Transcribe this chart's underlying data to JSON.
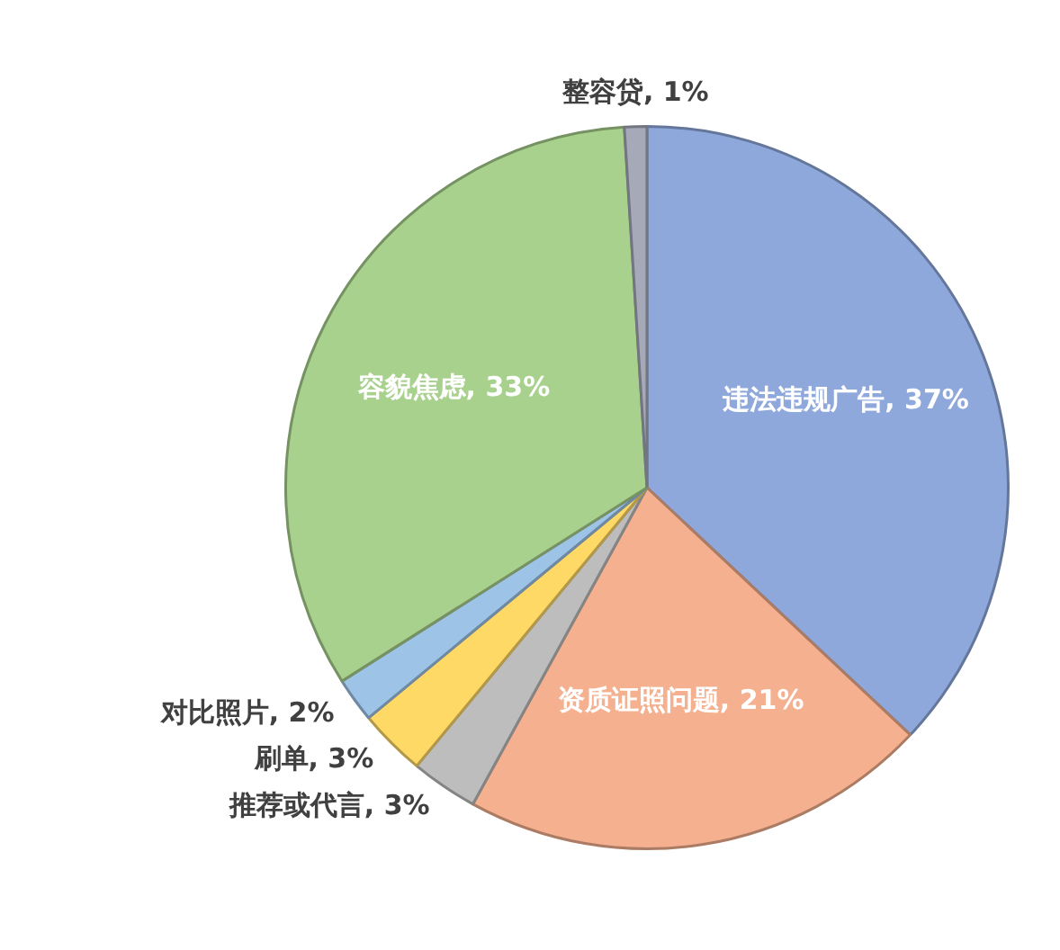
{
  "chart_data": {
    "type": "pie",
    "categories": [
      "违法违规广告",
      "资质证照问题",
      "推荐或代言",
      "刷单",
      "对比照片",
      "容貌焦虑",
      "整容贷"
    ],
    "values": [
      37,
      21,
      3,
      3,
      2,
      33,
      1
    ],
    "value_labels": [
      "37%",
      "21%",
      "3%",
      "3%",
      "2%",
      "33%",
      "1%"
    ],
    "colors": [
      "#8fa8dc",
      "#f4b08f",
      "#bdbdbd",
      "#ffd966",
      "#9dc3e6",
      "#a9d18e",
      "#a5a9b8"
    ],
    "legend": false
  }
}
